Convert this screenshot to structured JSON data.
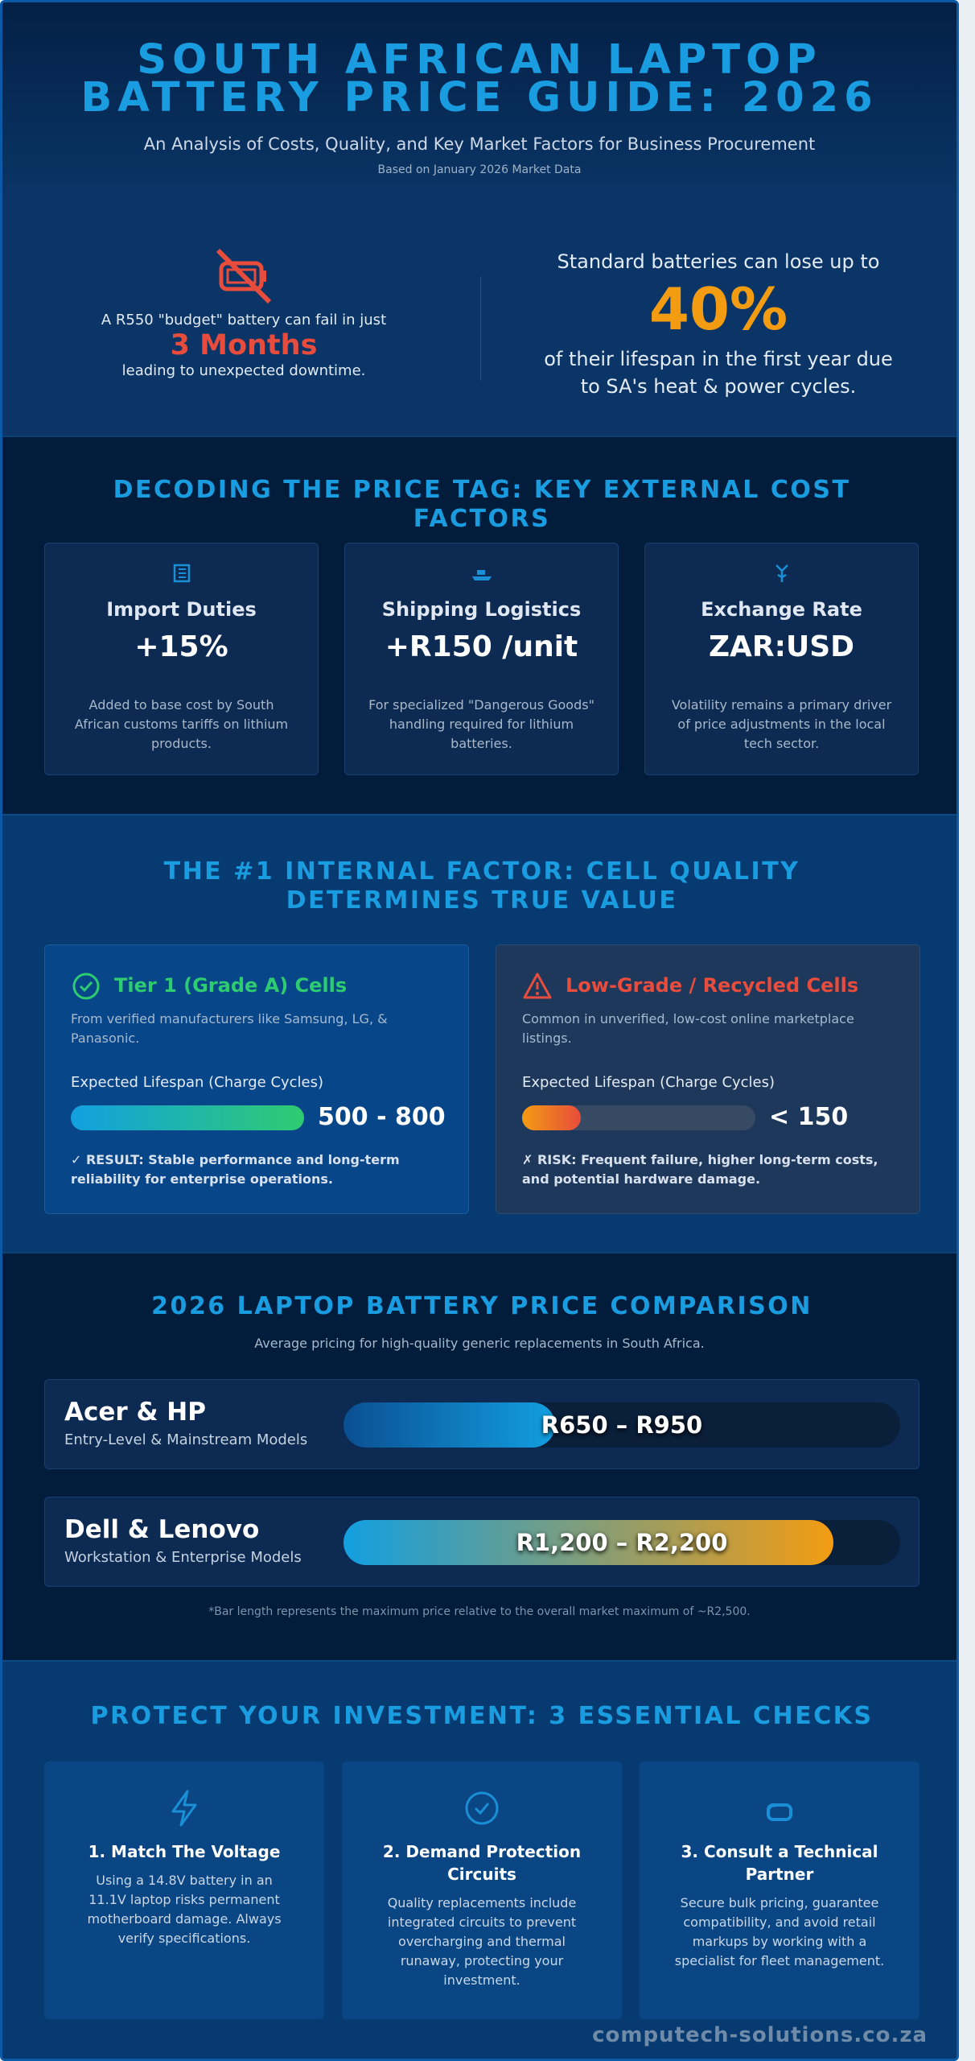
{
  "header": {
    "title": "SOUTH AFRICAN LAPTOP BATTERY PRICE GUIDE: 2026",
    "subtitle": "An Analysis of Costs, Quality, and Key Market Factors for Business Procurement",
    "note": "Based on January 2026 Market Data"
  },
  "hero": {
    "left": {
      "intro": "A R550 \"budget\" battery can fail in just",
      "highlight": "3 Months",
      "outro": "leading to unexpected downtime."
    },
    "right": {
      "intro": "Standard batteries can lose up to",
      "highlight": "40%",
      "outro": "of their lifespan in the first year due to SA's heat & power cycles."
    }
  },
  "cost_factors": {
    "title": "DECODING THE PRICE TAG: KEY EXTERNAL COST FACTORS",
    "cards": [
      {
        "title": "Import Duties",
        "value": "+15%",
        "description": "Added to base cost by South African customs tariffs on lithium products."
      },
      {
        "title": "Shipping Logistics",
        "value": "+R150 /unit",
        "description": "For specialized \"Dangerous Goods\" handling required for lithium batteries."
      },
      {
        "title": "Exchange Rate",
        "value": "ZAR:USD",
        "description": "Volatility remains a primary driver of price adjustments in the local tech sector."
      }
    ]
  },
  "cell_quality": {
    "title": "THE #1 INTERNAL FACTOR: CELL QUALITY DETERMINES TRUE VALUE",
    "cards": [
      {
        "title": "Tier 1 (Grade A) Cells",
        "description": "From verified manufacturers like Samsung, LG, & Panasonic.",
        "lifespan_label": "Expected Lifespan (Charge Cycles)",
        "range": "500 - 800",
        "fill_percent": 100,
        "verdict": "✓ RESULT: Stable performance and long-term reliability for enterprise operations."
      },
      {
        "title": "Low-Grade / Recycled Cells",
        "description": "Common in unverified, low-cost online marketplace listings.",
        "lifespan_label": "Expected Lifespan (Charge Cycles)",
        "range": "< 150",
        "fill_percent": 25,
        "verdict": "✗ RISK: Frequent failure, higher long-term costs, and potential hardware damage."
      }
    ]
  },
  "price_comparison": {
    "title": "2026 LAPTOP BATTERY PRICE COMPARISON",
    "subtitle": "Average pricing for high-quality generic replacements in South Africa.",
    "xlim": [
      0,
      2500
    ],
    "bars": [
      {
        "brand": "Acer & HP",
        "segment": "Entry-Level & Mainstream Models",
        "label": "R650 – R950",
        "max": 950
      },
      {
        "brand": "Dell & Lenovo",
        "segment": "Workstation & Enterprise Models",
        "label": "R1,200 – R2,200",
        "max": 2200
      }
    ],
    "footnote": "*Bar length represents the maximum price relative to the overall market maximum of ~R2,500."
  },
  "checks": {
    "title": "PROTECT YOUR INVESTMENT: 3 ESSENTIAL CHECKS",
    "cards": [
      {
        "title": "1. Match The Voltage",
        "description": "Using a 14.8V battery in an 11.1V laptop risks permanent motherboard damage. Always verify specifications."
      },
      {
        "title": "2. Demand Protection Circuits",
        "description": "Quality replacements include integrated circuits to prevent overcharging and thermal runaway, protecting your investment."
      },
      {
        "title": "3. Consult a Technical Partner",
        "description": "Secure bulk pricing, guarantee compatibility, and avoid retail markups by working with a specialist for fleet management."
      }
    ]
  },
  "footer": {
    "site": "computech-solutions.co.za"
  }
}
